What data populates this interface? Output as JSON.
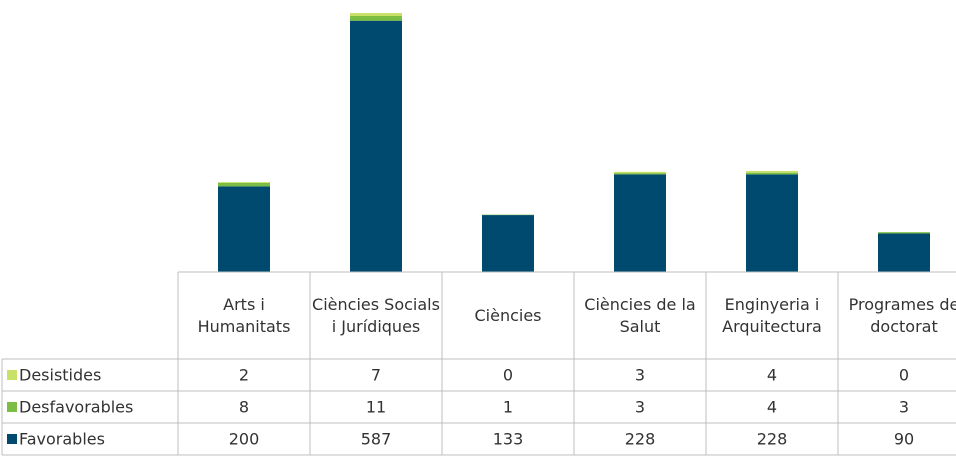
{
  "chart_data": {
    "type": "stacked_bar",
    "categories": [
      "Arts i Humanitats",
      "Ciències Socials i Jurídiques",
      "Ciències",
      "Ciències de la Salut",
      "Enginyeria i Arquitectura",
      "Programes de doctorat"
    ],
    "series": [
      {
        "name": "Favorables",
        "color": "#00496f",
        "values": [
          200,
          587,
          133,
          228,
          228,
          90
        ]
      },
      {
        "name": "Desfavorables",
        "color": "#7cbd43",
        "values": [
          8,
          11,
          1,
          3,
          4,
          3
        ]
      },
      {
        "name": "Desistides",
        "color": "#c8e168",
        "values": [
          2,
          7,
          0,
          3,
          4,
          0
        ]
      }
    ]
  }
}
